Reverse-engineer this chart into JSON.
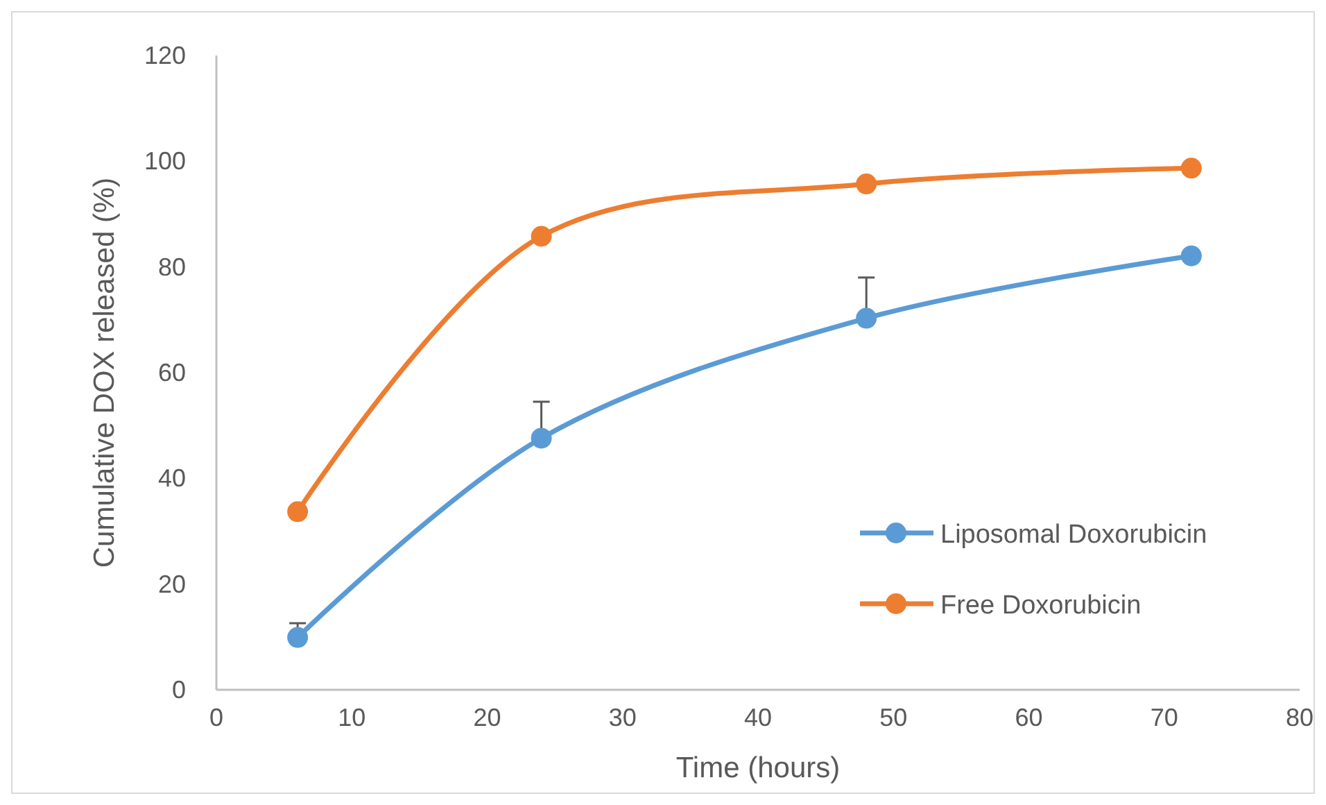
{
  "chart_data": {
    "type": "line",
    "xlabel": "Time (hours)",
    "ylabel": "Cumulative DOX released (%)",
    "xlim": [
      0,
      80
    ],
    "xticks": [
      0,
      10,
      20,
      30,
      40,
      50,
      60,
      70,
      80
    ],
    "ylim": [
      0,
      120
    ],
    "yticks": [
      0,
      20,
      40,
      60,
      80,
      100,
      120
    ],
    "x": [
      6,
      24,
      48,
      72
    ],
    "grid": false,
    "legend": "right",
    "marker": "circle",
    "line_style": "solid",
    "series": [
      {
        "name": "Liposomal Doxorubicin",
        "color": "#5b9bd5",
        "values": [
          9.9,
          47.6,
          70.3,
          82.1
        ],
        "errors": [
          [
            9.9,
            12.6
          ],
          [
            47.6,
            54.5
          ],
          [
            70.3,
            78
          ],
          null
        ]
      },
      {
        "name": "Free Doxorubicin",
        "color": "#ed7d31",
        "values": [
          33.7,
          85.8,
          95.7,
          98.7
        ]
      }
    ]
  }
}
